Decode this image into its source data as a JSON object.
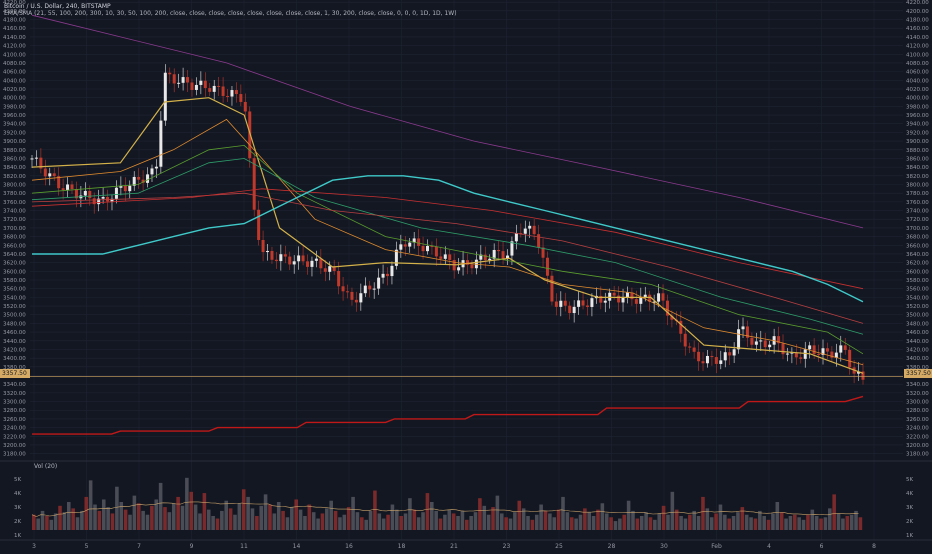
{
  "header": {
    "title": "Bitcoin / U.S. Dollar, 240, BITSTAMP",
    "indicator": "EMA/SMA (21, 55, 100, 200, 300, 10, 30, 50, 100, 200, close, close, close, close, close, close, close, close, 1, 30, 200, close, close, 0, 0, 0, 1D, 1D, 1W)"
  },
  "volume_panel": {
    "label": "Vol (20)"
  },
  "colors": {
    "background": "#131722",
    "grid": "#1f2433",
    "bull": "#e8e8e8",
    "bear": "#c0392b",
    "ema_yellow": "#d4b24a",
    "ema_orange": "#e08b2e",
    "ema_green": "#2e9e6a",
    "ema_red": "#c73030",
    "ema_purple": "#8b3a8f",
    "line_cyan": "#3fc9c9",
    "line_darkred": "#c01818"
  },
  "chart_data": [
    {
      "type": "line",
      "title": "Bitcoin / U.S. Dollar, 240, BITSTAMP",
      "y_ticks": [
        4220,
        4200,
        4180,
        4160,
        4140,
        4120,
        4100,
        4080,
        4060,
        4040,
        4020,
        4000,
        3980,
        3960,
        3940,
        3920,
        3900,
        3880,
        3860,
        3840,
        3820,
        3800,
        3780,
        3760,
        3740,
        3720,
        3700,
        3680,
        3660,
        3640,
        3620,
        3600,
        3580,
        3560,
        3540,
        3520,
        3500,
        3480,
        3460,
        3440,
        3420,
        3400,
        3380,
        3360,
        3340,
        3320,
        3300,
        3280,
        3260,
        3240,
        3220,
        3200,
        3180
      ],
      "ylim": [
        3170,
        4225
      ],
      "x_ticks": [
        "3",
        "5",
        "7",
        "9",
        "11",
        "14",
        "16",
        "18",
        "21",
        "23",
        "25",
        "28",
        "30",
        "Feb",
        "4",
        "6",
        "8"
      ],
      "last_price": 3357.5,
      "close_path": [
        [
          0,
          3860
        ],
        [
          3,
          3800
        ],
        [
          5,
          3780
        ],
        [
          8,
          3760
        ],
        [
          10,
          3790
        ],
        [
          12,
          3810
        ],
        [
          14,
          3830
        ],
        [
          15,
          4050
        ],
        [
          18,
          4030
        ],
        [
          20,
          4025
        ],
        [
          22,
          4010
        ],
        [
          24,
          4000
        ],
        [
          25,
          3760
        ],
        [
          26,
          3640
        ],
        [
          28,
          3630
        ],
        [
          32,
          3620
        ],
        [
          34,
          3600
        ],
        [
          36,
          3530
        ],
        [
          38,
          3560
        ],
        [
          40,
          3590
        ],
        [
          42,
          3670
        ],
        [
          44,
          3660
        ],
        [
          46,
          3640
        ],
        [
          48,
          3610
        ],
        [
          50,
          3620
        ],
        [
          52,
          3640
        ],
        [
          54,
          3640
        ],
        [
          55,
          3700
        ],
        [
          57,
          3690
        ],
        [
          59,
          3525
        ],
        [
          61,
          3515
        ],
        [
          63,
          3530
        ],
        [
          65,
          3540
        ],
        [
          67,
          3540
        ],
        [
          69,
          3535
        ],
        [
          71,
          3540
        ],
        [
          73,
          3470
        ],
        [
          75,
          3400
        ],
        [
          77,
          3395
        ],
        [
          79,
          3405
        ],
        [
          80,
          3470
        ],
        [
          82,
          3430
        ],
        [
          84,
          3440
        ],
        [
          86,
          3400
        ],
        [
          88,
          3420
        ],
        [
          90,
          3410
        ],
        [
          92,
          3420
        ],
        [
          93,
          3360
        ],
        [
          94,
          3357
        ]
      ],
      "series": [
        {
          "values": [
            [
              0,
              3840
            ],
            [
              10,
              3850
            ],
            [
              15,
              3990
            ],
            [
              20,
              4000
            ],
            [
              24,
              3960
            ],
            [
              28,
              3700
            ],
            [
              34,
              3610
            ],
            [
              40,
              3620
            ],
            [
              48,
              3615
            ],
            [
              54,
              3630
            ],
            [
              58,
              3580
            ],
            [
              64,
              3540
            ],
            [
              70,
              3540
            ],
            [
              76,
              3430
            ],
            [
              82,
              3420
            ],
            [
              88,
              3410
            ],
            [
              94,
              3365
            ]
          ]
        },
        {
          "values": [
            [
              0,
              3810
            ],
            [
              10,
              3830
            ],
            [
              16,
              3880
            ],
            [
              22,
              3950
            ],
            [
              26,
              3860
            ],
            [
              32,
              3720
            ],
            [
              40,
              3650
            ],
            [
              48,
              3620
            ],
            [
              54,
              3610
            ],
            [
              60,
              3570
            ],
            [
              68,
              3550
            ],
            [
              76,
              3470
            ],
            [
              84,
              3440
            ],
            [
              94,
              3385
            ]
          ]
        },
        {
          "values": [
            [
              0,
              3780
            ],
            [
              12,
              3800
            ],
            [
              20,
              3880
            ],
            [
              24,
              3890
            ],
            [
              30,
              3780
            ],
            [
              40,
              3680
            ],
            [
              50,
              3640
            ],
            [
              60,
              3600
            ],
            [
              70,
              3570
            ],
            [
              80,
              3500
            ],
            [
              90,
              3460
            ],
            [
              94,
              3410
            ]
          ]
        },
        {
          "values": [
            [
              0,
              3765
            ],
            [
              12,
              3780
            ],
            [
              20,
              3850
            ],
            [
              24,
              3860
            ],
            [
              32,
              3770
            ],
            [
              44,
              3700
            ],
            [
              56,
              3660
            ],
            [
              66,
              3620
            ],
            [
              78,
              3540
            ],
            [
              88,
              3490
            ],
            [
              94,
              3455
            ]
          ]
        },
        {
          "values": [
            [
              0,
              3760
            ],
            [
              16,
              3770
            ],
            [
              24,
              3780
            ],
            [
              34,
              3740
            ],
            [
              48,
              3710
            ],
            [
              60,
              3670
            ],
            [
              72,
              3610
            ],
            [
              84,
              3540
            ],
            [
              94,
              3480
            ]
          ]
        },
        {
          "values": [
            [
              0,
              3750
            ],
            [
              18,
              3770
            ],
            [
              26,
              3790
            ],
            [
              40,
              3770
            ],
            [
              52,
              3740
            ],
            [
              66,
              3690
            ],
            [
              80,
              3620
            ],
            [
              94,
              3560
            ]
          ]
        },
        {
          "values": [
            [
              0,
              4190
            ],
            [
              10,
              4140
            ],
            [
              22,
              4080
            ],
            [
              36,
              3980
            ],
            [
              50,
              3900
            ],
            [
              64,
              3840
            ],
            [
              80,
              3770
            ],
            [
              94,
              3700
            ]
          ]
        },
        {
          "values": [
            [
              0,
              3640
            ],
            [
              8,
              3640
            ],
            [
              12,
              3660
            ],
            [
              16,
              3680
            ],
            [
              20,
              3700
            ],
            [
              24,
              3710
            ],
            [
              26,
              3730
            ],
            [
              30,
              3770
            ],
            [
              34,
              3810
            ],
            [
              38,
              3820
            ],
            [
              42,
              3820
            ],
            [
              46,
              3810
            ],
            [
              50,
              3780
            ],
            [
              54,
              3760
            ],
            [
              58,
              3740
            ],
            [
              62,
              3720
            ],
            [
              66,
              3700
            ],
            [
              70,
              3680
            ],
            [
              74,
              3660
            ],
            [
              78,
              3640
            ],
            [
              82,
              3620
            ],
            [
              86,
              3600
            ],
            [
              90,
              3570
            ],
            [
              92,
              3550
            ],
            [
              94,
              3530
            ]
          ]
        },
        {
          "values": [
            [
              0,
              3225
            ],
            [
              9,
              3225
            ],
            [
              10,
              3232
            ],
            [
              20,
              3232
            ],
            [
              21,
              3240
            ],
            [
              30,
              3240
            ],
            [
              31,
              3252
            ],
            [
              40,
              3252
            ],
            [
              41,
              3260
            ],
            [
              49,
              3260
            ],
            [
              50,
              3270
            ],
            [
              64,
              3270
            ],
            [
              65,
              3285
            ],
            [
              80,
              3285
            ],
            [
              81,
              3300
            ],
            [
              92,
              3300
            ],
            [
              94,
              3312
            ]
          ]
        }
      ]
    },
    {
      "type": "bar",
      "title": "Vol (20)",
      "y_ticks": [
        "5K",
        "4K",
        "3K",
        "2K",
        "1K"
      ],
      "ylim": [
        0,
        5500
      ],
      "values": [
        1200,
        900,
        1500,
        1100,
        800,
        1300,
        1900,
        1400,
        2200,
        1700,
        1000,
        1500,
        2600,
        3900,
        2000,
        1500,
        2400,
        1800,
        1300,
        3400,
        2200,
        1600,
        1200,
        2700,
        2100,
        1500,
        1200,
        1900,
        2400,
        3700,
        1800,
        1400,
        2100,
        2600,
        1900,
        4100,
        3000,
        2000,
        1300,
        2900,
        1600,
        1100,
        900,
        1500,
        2300,
        1700,
        1200,
        2100,
        3200,
        2600,
        1700,
        1100,
        1900,
        2800,
        2000,
        1300,
        2200,
        1500,
        1000,
        1800,
        2400,
        1600,
        1100,
        2000,
        1400,
        900,
        1300,
        1700,
        2300,
        1500,
        1000,
        1200,
        1800,
        2600,
        1400,
        1000,
        800,
        1500,
        3100,
        1300,
        900,
        1200,
        2000,
        1600,
        1100,
        1300,
        2500,
        1600,
        1000,
        1400,
        2900,
        2200,
        1500,
        900,
        1200,
        1600,
        1300,
        1100,
        1500,
        800,
        1100,
        1400,
        2500,
        1900,
        1200,
        1800,
        2700,
        1300,
        1000,
        900,
        1400,
        2300,
        1700,
        1100,
        800,
        1200,
        2000,
        1500,
        1300,
        1000,
        1600,
        2600,
        1400,
        1000,
        900,
        1200,
        1700,
        1400,
        1100,
        1600,
        2100,
        1300,
        1000,
        700,
        900,
        1200,
        2300,
        1500,
        900,
        1100,
        1400,
        1000,
        800,
        1300,
        1900,
        1200,
        3000,
        1600,
        1100,
        900,
        1200,
        1500,
        1100,
        2600,
        1700,
        1000,
        1300,
        2000,
        1200,
        900,
        1100,
        1400,
        1800,
        1200,
        1000,
        900,
        1500,
        1100,
        800,
        1300,
        2200,
        1400,
        900,
        1100,
        1200,
        1000,
        800,
        1200,
        1600,
        1100,
        900,
        1000,
        1700,
        2800,
        1300,
        900,
        1100,
        1200,
        1500,
        1000
      ]
    }
  ]
}
